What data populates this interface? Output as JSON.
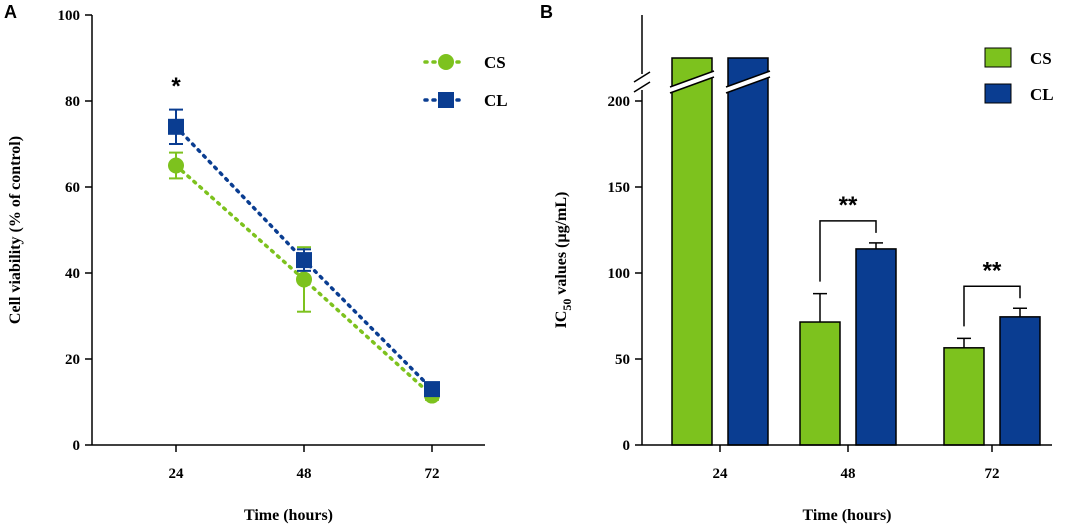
{
  "colors": {
    "cs": "#7dc21e",
    "cl": "#0a3d91",
    "axis": "#000000"
  },
  "chart_data": [
    {
      "panel": "A",
      "type": "line",
      "xlabel": "Time (hours)",
      "ylabel": "Cell viability (% of control)",
      "x_ticks": [
        "24",
        "48",
        "72"
      ],
      "y_ticks": [
        "0",
        "20",
        "40",
        "60",
        "80",
        "100"
      ],
      "ylim": [
        0,
        100
      ],
      "series": [
        {
          "name": "CS",
          "values": [
            65,
            38.5,
            11.5
          ],
          "errors": [
            3,
            7.5,
            1
          ]
        },
        {
          "name": "CL",
          "values": [
            74,
            43,
            13
          ],
          "errors": [
            4,
            2.5,
            1
          ]
        }
      ],
      "annotations": [
        {
          "label": "*",
          "x": "24",
          "y": 84
        }
      ]
    },
    {
      "panel": "B",
      "type": "bar",
      "xlabel": "Time (hours)",
      "ylabel_main": "IC",
      "ylabel_sub": "50",
      "ylabel_rest": " values (µg/mL)",
      "categories": [
        "24",
        "48",
        "72"
      ],
      "y_ticks": [
        "0",
        "50",
        "100",
        "150",
        "200"
      ],
      "ylim": [
        0,
        200
      ],
      "axis_break": true,
      "series": [
        {
          "name": "CS",
          "values": [
            225,
            71.5,
            56.5
          ],
          "errors": [
            0,
            16.5,
            5.5
          ]
        },
        {
          "name": "CL",
          "values": [
            225,
            114,
            74.5
          ],
          "errors": [
            0,
            3.5,
            5
          ]
        }
      ],
      "annotations": [
        {
          "label": "**",
          "category": "48"
        },
        {
          "label": "**",
          "category": "72"
        }
      ]
    }
  ]
}
